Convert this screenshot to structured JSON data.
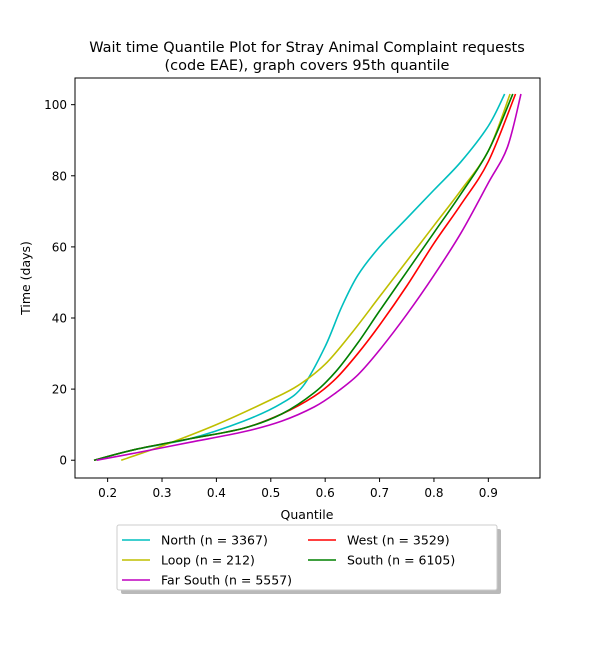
{
  "chart_data": {
    "type": "line",
    "title": "Wait time Quantile Plot for Stray Animal Complaint  requests",
    "subtitle": "(code EAE), graph covers 95th quantile",
    "xlabel": "Quantile",
    "ylabel": "Time (days)",
    "xlim": [
      0.14,
      0.995
    ],
    "ylim": [
      -5,
      107.5
    ],
    "xticks": [
      0.2,
      0.3,
      0.4,
      0.5,
      0.6,
      0.7,
      0.8,
      0.9
    ],
    "yticks": [
      0,
      20,
      40,
      60,
      80,
      100
    ],
    "grid": false,
    "legend_position": "bottom-center",
    "series": [
      {
        "name": "North (n = 3367)",
        "color": "#00bfbf",
        "x": [
          0.175,
          0.25,
          0.35,
          0.45,
          0.52,
          0.56,
          0.6,
          0.63,
          0.66,
          0.7,
          0.75,
          0.8,
          0.85,
          0.9,
          0.93
        ],
        "y": [
          0,
          3,
          6,
          11,
          16,
          21,
          32,
          43,
          52,
          60,
          68,
          76,
          84,
          94,
          103
        ]
      },
      {
        "name": "West (n = 3529)",
        "color": "#ff0000",
        "x": [
          0.175,
          0.25,
          0.35,
          0.45,
          0.52,
          0.58,
          0.62,
          0.66,
          0.7,
          0.75,
          0.8,
          0.85,
          0.9,
          0.95
        ],
        "y": [
          0,
          3,
          6,
          9,
          13,
          18,
          23,
          30,
          38,
          49,
          61,
          72,
          84,
          103
        ]
      },
      {
        "name": "Loop (n = 212)",
        "color": "#bfbf00",
        "x": [
          0.225,
          0.3,
          0.4,
          0.5,
          0.55,
          0.6,
          0.65,
          0.7,
          0.75,
          0.8,
          0.85,
          0.9,
          0.94
        ],
        "y": [
          0,
          4,
          10,
          17,
          21,
          27,
          36,
          46,
          56,
          66,
          76,
          87,
          103
        ]
      },
      {
        "name": "South (n = 6105)",
        "color": "#008000",
        "x": [
          0.175,
          0.25,
          0.35,
          0.45,
          0.52,
          0.58,
          0.62,
          0.66,
          0.7,
          0.75,
          0.8,
          0.85,
          0.9,
          0.945
        ],
        "y": [
          0,
          3,
          6,
          9,
          13,
          19,
          25,
          33,
          42,
          53,
          64,
          75,
          87,
          103
        ]
      },
      {
        "name": "Far South (n = 5557)",
        "color": "#bf00bf",
        "x": [
          0.18,
          0.25,
          0.35,
          0.45,
          0.52,
          0.58,
          0.62,
          0.66,
          0.7,
          0.75,
          0.8,
          0.85,
          0.9,
          0.935,
          0.96
        ],
        "y": [
          0,
          2,
          5,
          8,
          11,
          15,
          19,
          24,
          31,
          41,
          52,
          64,
          78,
          88,
          103
        ]
      }
    ]
  }
}
